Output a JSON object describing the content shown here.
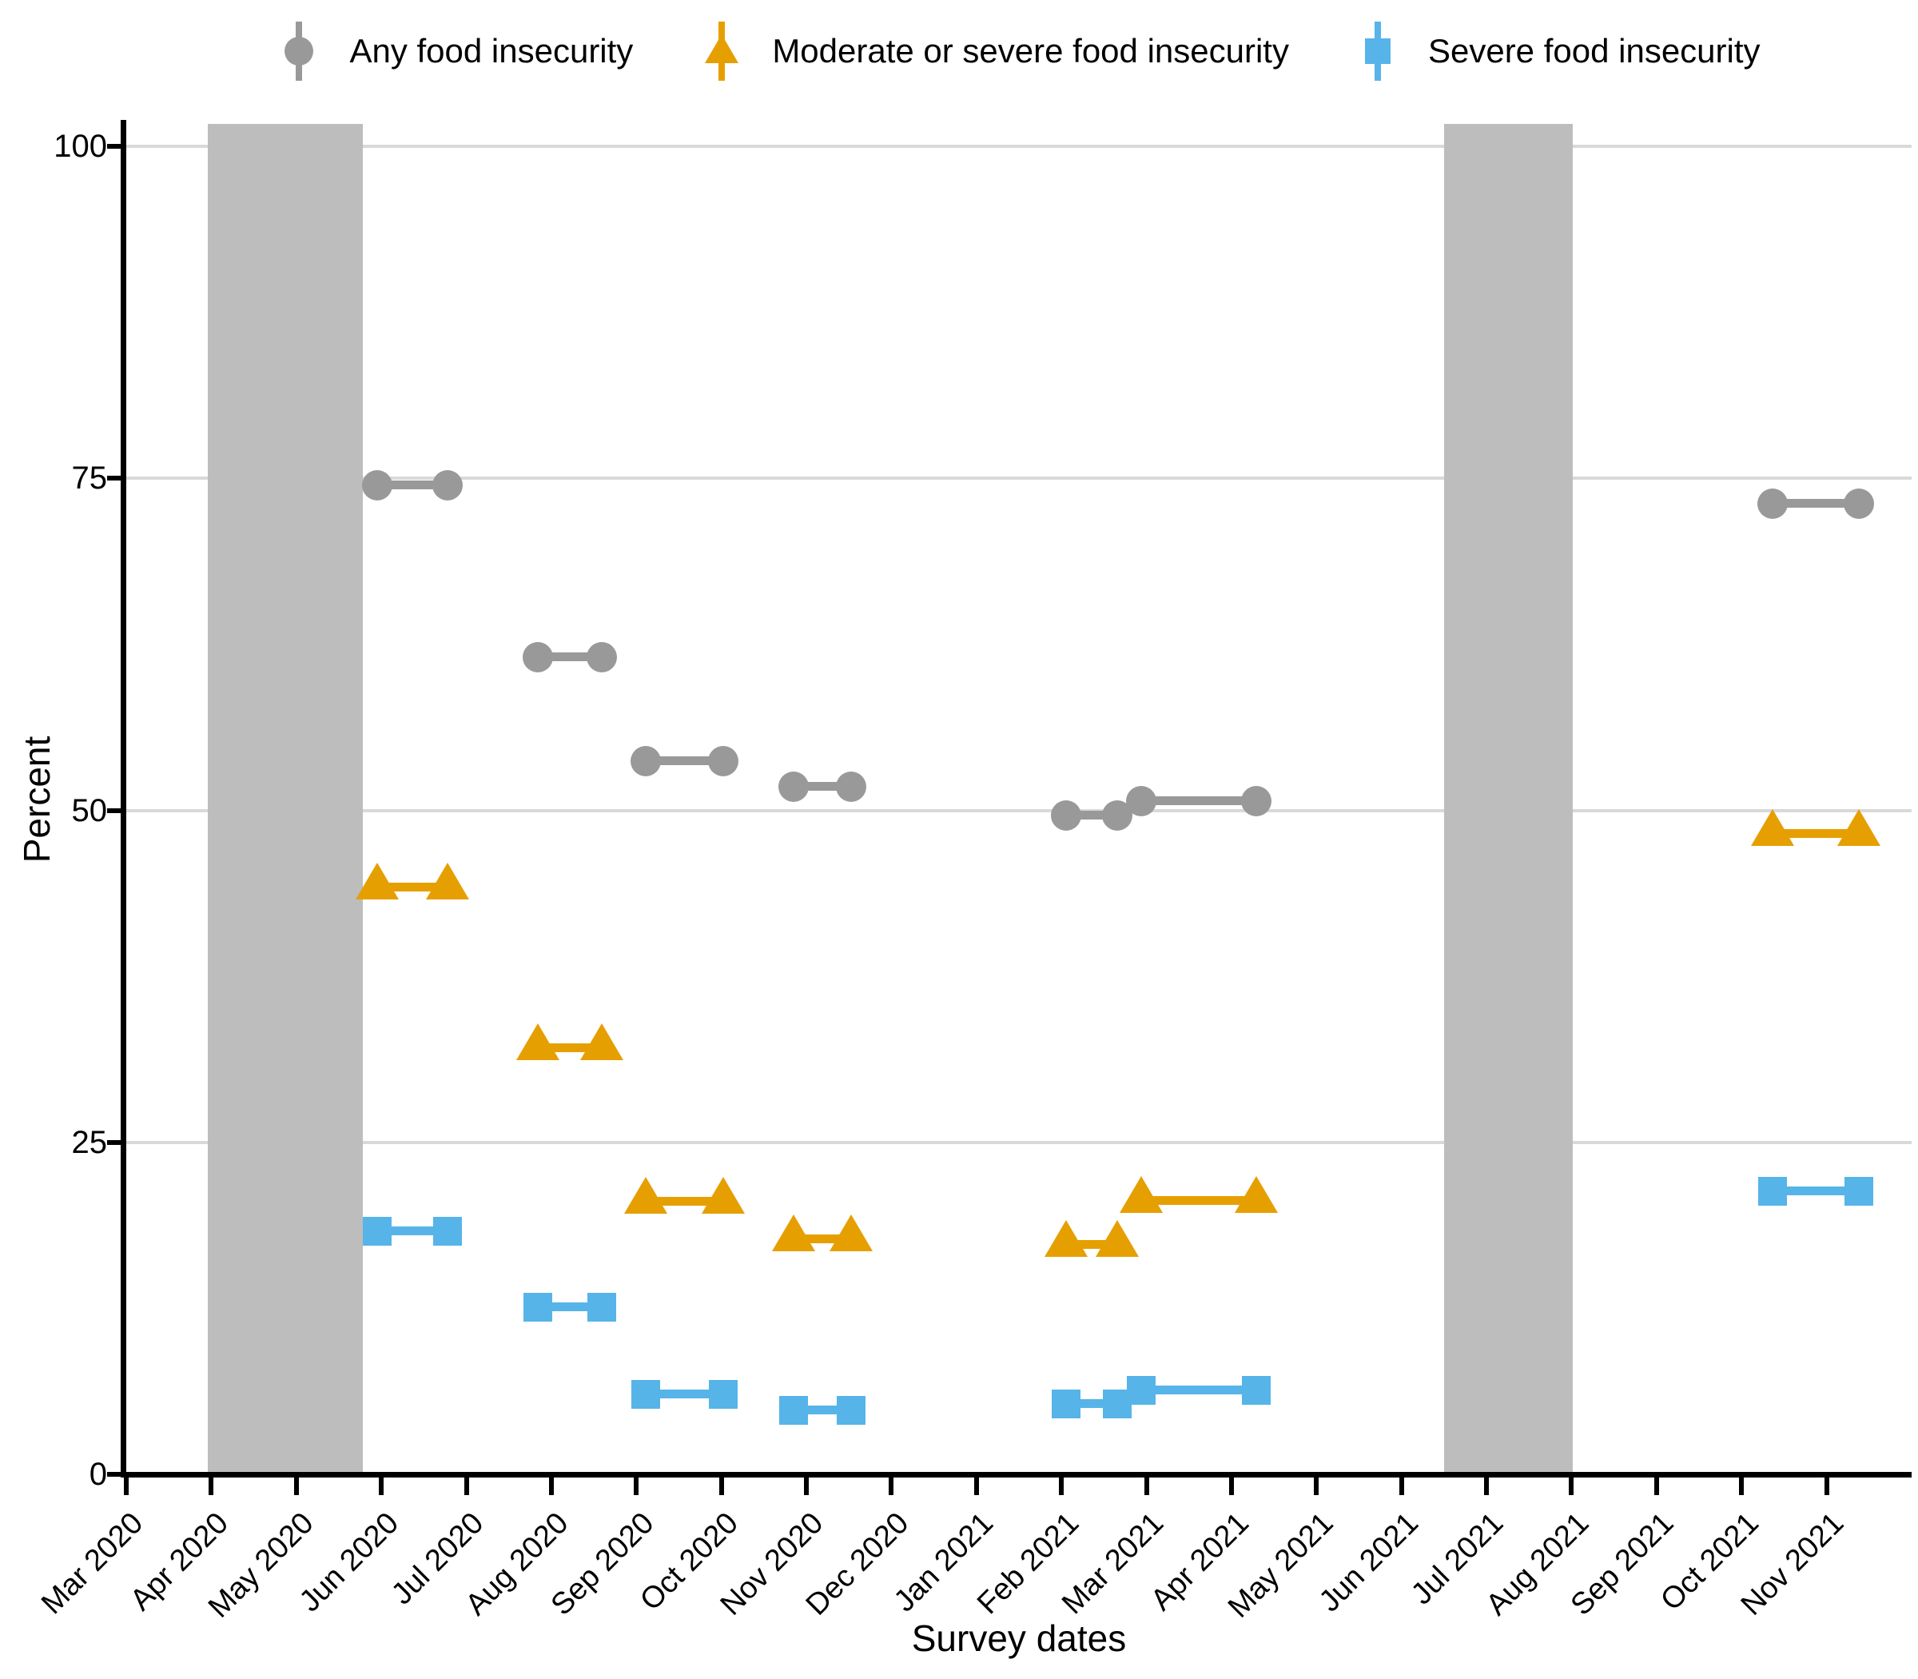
{
  "legend": {
    "items": [
      {
        "label": "Any food insecurity",
        "marker": "circle",
        "color": "#999999"
      },
      {
        "label": "Moderate or severe food insecurity",
        "marker": "triangle",
        "color": "#E69F00"
      },
      {
        "label": "Severe food insecurity",
        "marker": "square",
        "color": "#56B4E9"
      }
    ]
  },
  "y_axis": {
    "title": "Percent",
    "ticks": [
      100,
      75,
      50,
      25,
      0
    ],
    "gridlines": [
      25,
      50,
      75,
      100
    ],
    "min": 0,
    "max": 100
  },
  "x_axis": {
    "title": "Survey dates",
    "months_span": 21,
    "tick_labels": [
      "Mar 2020",
      "Apr 2020",
      "May 2020",
      "Jun 2020",
      "Jul 2020",
      "Aug 2020",
      "Sep 2020",
      "Oct 2020",
      "Nov 2020",
      "Dec 2020",
      "Jan 2021",
      "Feb 2021",
      "Mar 2021",
      "Apr 2021",
      "May 2021",
      "Jun 2021",
      "Jul 2021",
      "Aug 2021",
      "Sep 2021",
      "Oct 2021",
      "Nov 2021"
    ]
  },
  "shaded_bands": [
    {
      "label": "shaded-period-1",
      "start_month": 0.96,
      "end_month": 2.78,
      "approx_dates": "late Mar 2020 - late May 2020",
      "color": "#BDBDBD"
    },
    {
      "label": "shaded-period-2",
      "start_month": 15.5,
      "end_month": 17.01,
      "approx_dates": "mid Jun 2021 - Aug 2021",
      "color": "#BDBDBD"
    }
  ],
  "chart_data": {
    "type": "line",
    "subtype": "horizontal-survey-range-segments-with-end-markers",
    "title": "",
    "xlabel": "Survey dates",
    "ylabel": "Percent",
    "ylim": [
      0,
      100
    ],
    "grid": "horizontal-only",
    "legend_position": "top",
    "x_unit": "months since Mar 2020 (0 = Mar 2020 tick, 20 = Nov 2021 tick)",
    "series": [
      {
        "name": "Any food insecurity",
        "marker": "circle",
        "color": "#999999",
        "points": [
          {
            "x_start": 2.95,
            "x_end": 3.78,
            "value": 74.5,
            "survey_window": "late May-late Jun 2020"
          },
          {
            "x_start": 4.84,
            "x_end": 5.59,
            "value": 61.5,
            "survey_window": "late Jul-mid Aug 2020"
          },
          {
            "x_start": 6.11,
            "x_end": 7.02,
            "value": 53.7,
            "survey_window": "early Sep-early Oct 2020"
          },
          {
            "x_start": 7.85,
            "x_end": 8.53,
            "value": 51.8,
            "survey_window": "late Oct-mid Nov 2020"
          },
          {
            "x_start": 11.05,
            "x_end": 11.66,
            "value": 49.6,
            "survey_window": "early-late Feb 2021"
          },
          {
            "x_start": 11.94,
            "x_end": 13.29,
            "value": 50.7,
            "survey_window": "Mar-early Apr 2021"
          },
          {
            "x_start": 19.36,
            "x_end": 20.38,
            "value": 73.1,
            "survey_window": "mid Oct-mid Nov 2021"
          }
        ]
      },
      {
        "name": "Moderate or severe food insecurity",
        "marker": "triangle",
        "color": "#E69F00",
        "points": [
          {
            "x_start": 2.95,
            "x_end": 3.78,
            "value": 44.2,
            "survey_window": "late May-late Jun 2020"
          },
          {
            "x_start": 4.84,
            "x_end": 5.59,
            "value": 32.1,
            "survey_window": "late Jul-mid Aug 2020"
          },
          {
            "x_start": 6.11,
            "x_end": 7.02,
            "value": 20.5,
            "survey_window": "early Sep-early Oct 2020"
          },
          {
            "x_start": 7.85,
            "x_end": 8.53,
            "value": 17.7,
            "survey_window": "late Oct-mid Nov 2020"
          },
          {
            "x_start": 11.05,
            "x_end": 11.66,
            "value": 17.3,
            "survey_window": "early-late Feb 2021"
          },
          {
            "x_start": 11.94,
            "x_end": 13.29,
            "value": 20.6,
            "survey_window": "Mar-early Apr 2021"
          },
          {
            "x_start": 19.36,
            "x_end": 20.38,
            "value": 48.2,
            "survey_window": "mid Oct-mid Nov 2021"
          }
        ]
      },
      {
        "name": "Severe food insecurity",
        "marker": "square",
        "color": "#56B4E9",
        "points": [
          {
            "x_start": 2.95,
            "x_end": 3.78,
            "value": 18.3,
            "survey_window": "late May-late Jun 2020"
          },
          {
            "x_start": 4.84,
            "x_end": 5.59,
            "value": 12.6,
            "survey_window": "late Jul-mid Aug 2020"
          },
          {
            "x_start": 6.11,
            "x_end": 7.02,
            "value": 6.0,
            "survey_window": "early Sep-early Oct 2020"
          },
          {
            "x_start": 7.85,
            "x_end": 8.53,
            "value": 4.8,
            "survey_window": "late Oct-mid Nov 2020"
          },
          {
            "x_start": 11.05,
            "x_end": 11.66,
            "value": 5.3,
            "survey_window": "early-late Feb 2021"
          },
          {
            "x_start": 11.94,
            "x_end": 13.29,
            "value": 6.3,
            "survey_window": "Mar-early Apr 2021"
          },
          {
            "x_start": 19.36,
            "x_end": 20.38,
            "value": 21.3,
            "survey_window": "mid Oct-mid Nov 2021"
          }
        ]
      }
    ]
  }
}
